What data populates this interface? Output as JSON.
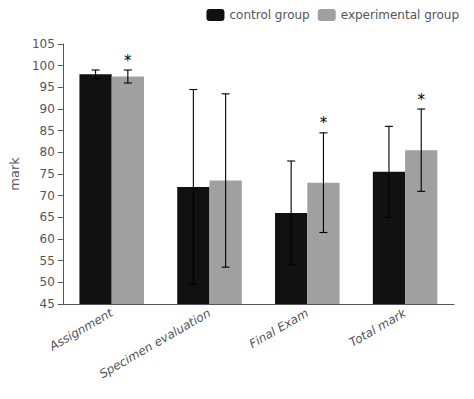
{
  "chart_data": {
    "type": "bar",
    "categories": [
      "Assignment",
      "Specimen evaluation",
      "Final Exam",
      "Total mark"
    ],
    "series": [
      {
        "name": "control group",
        "color": "#111111",
        "values": [
          98.0,
          72.0,
          66.0,
          75.5
        ],
        "errors": [
          1.0,
          22.5,
          12.0,
          10.5
        ]
      },
      {
        "name": "experimental group",
        "color": "#a0a0a0",
        "values": [
          97.5,
          73.5,
          73.0,
          80.5
        ],
        "errors": [
          1.5,
          20.0,
          11.5,
          9.5
        ]
      }
    ],
    "ylabel": "mark",
    "ylim": [
      45,
      105
    ],
    "yticks": [
      45,
      50,
      55,
      60,
      65,
      70,
      75,
      80,
      85,
      90,
      95,
      100,
      105
    ],
    "annotations": [
      {
        "text": "*",
        "category": "Assignment",
        "series": "experimental group"
      },
      {
        "text": "*",
        "category": "Final Exam",
        "series": "experimental group"
      },
      {
        "text": "*",
        "category": "Total mark",
        "series": "experimental group"
      }
    ],
    "grid": false,
    "legend": "upper right"
  }
}
